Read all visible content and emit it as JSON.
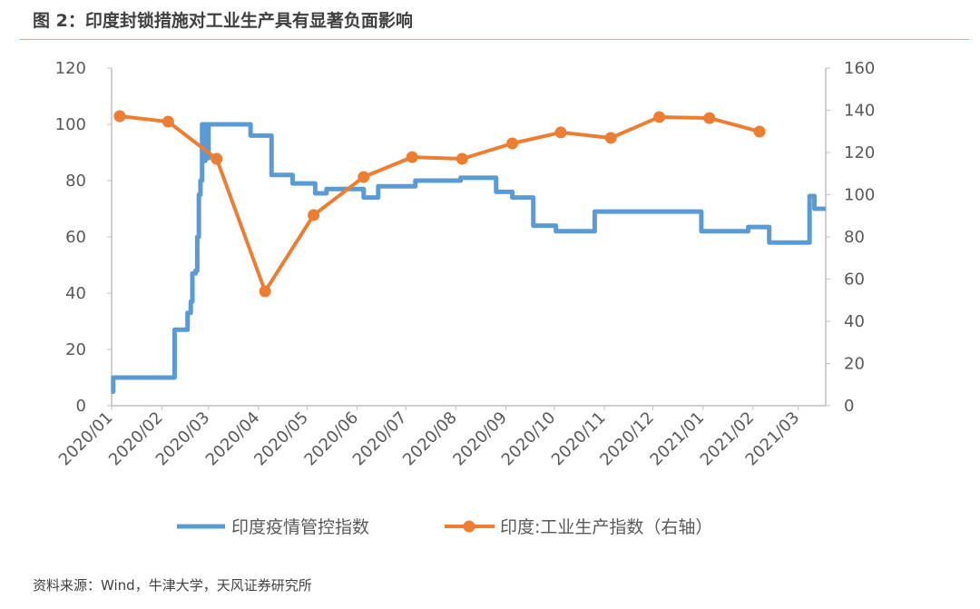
{
  "title": "图 2：印度封锁措施对工业生产具有显著负面影响",
  "source": "资料来源：Wind，牛津大学，天风证券研究所",
  "colors": {
    "blue": "#5b9bd5",
    "orange": "#ed7d31",
    "accent_rule": "#f4a460"
  },
  "chart_data": {
    "type": "line",
    "title": "",
    "x_axis": {
      "type": "date",
      "range": [
        "2020-01-01",
        "2021-03-18"
      ],
      "tick_labels": [
        "2020/01",
        "2020/02",
        "2020/03",
        "2020/04",
        "2020/05",
        "2020/06",
        "2020/07",
        "2020/08",
        "2020/09",
        "2020/10",
        "2020/11",
        "2020/12",
        "2021/01",
        "2021/02",
        "2021/03"
      ]
    },
    "y_left": {
      "range": [
        0,
        120
      ],
      "ticks": [
        0,
        20,
        40,
        60,
        80,
        100,
        120
      ]
    },
    "y_right": {
      "range": [
        0,
        160
      ],
      "ticks": [
        0,
        20,
        40,
        60,
        80,
        100,
        120,
        140,
        160
      ]
    },
    "grid": false,
    "legend_placement": "bottom",
    "series": [
      {
        "name": "印度疫情管控指数",
        "axis": "left",
        "style": "step",
        "color": "#5b9bd5",
        "points": [
          [
            "2020-01-01",
            5
          ],
          [
            "2020-01-02",
            10
          ],
          [
            "2020-02-09",
            27
          ],
          [
            "2020-02-17",
            33
          ],
          [
            "2020-02-19",
            37
          ],
          [
            "2020-02-20",
            47
          ],
          [
            "2020-02-22",
            48
          ],
          [
            "2020-02-23",
            60
          ],
          [
            "2020-02-24",
            75
          ],
          [
            "2020-02-25",
            80
          ],
          [
            "2020-02-26",
            100
          ],
          [
            "2020-02-27",
            87
          ],
          [
            "2020-02-28",
            100
          ],
          [
            "2020-02-29",
            88
          ],
          [
            "2020-03-01",
            100
          ],
          [
            "2020-03-27",
            96
          ],
          [
            "2020-04-09",
            82
          ],
          [
            "2020-04-22",
            79
          ],
          [
            "2020-05-06",
            75.5
          ],
          [
            "2020-05-13",
            77
          ],
          [
            "2020-06-05",
            74
          ],
          [
            "2020-06-14",
            78
          ],
          [
            "2020-07-07",
            80
          ],
          [
            "2020-08-04",
            81
          ],
          [
            "2020-08-26",
            76
          ],
          [
            "2020-09-05",
            74
          ],
          [
            "2020-09-18",
            64
          ],
          [
            "2020-10-02",
            62
          ],
          [
            "2020-10-26",
            69
          ],
          [
            "2020-12-31",
            62
          ],
          [
            "2021-01-29",
            63.5
          ],
          [
            "2021-02-11",
            58
          ],
          [
            "2021-03-08",
            74.5
          ],
          [
            "2021-03-11",
            70
          ],
          [
            "2021-03-18",
            70
          ]
        ]
      },
      {
        "name": "印度:工业生产指数（右轴）",
        "axis": "right",
        "style": "line-marker",
        "color": "#ed7d31",
        "points": [
          [
            "2020-01-06",
            137.2
          ],
          [
            "2020-02-05",
            134.6
          ],
          [
            "2020-03-06",
            117
          ],
          [
            "2020-04-05",
            54.2
          ],
          [
            "2020-05-05",
            90.3
          ],
          [
            "2020-06-05",
            108.4
          ],
          [
            "2020-07-05",
            117.8
          ],
          [
            "2020-08-05",
            117
          ],
          [
            "2020-09-05",
            124.3
          ],
          [
            "2020-10-05",
            129.5
          ],
          [
            "2020-11-05",
            126.9
          ],
          [
            "2020-12-05",
            136.8
          ],
          [
            "2021-01-05",
            136.3
          ],
          [
            "2021-02-05",
            129.9
          ]
        ]
      }
    ]
  }
}
